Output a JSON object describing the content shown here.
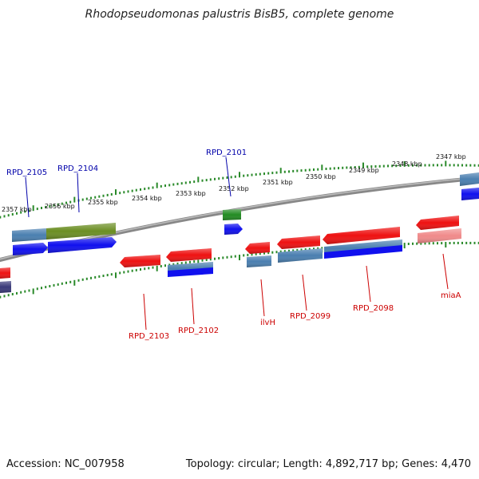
{
  "title": "Rhodopseudomonas palustris BisB5, complete genome",
  "footer": {
    "accession": "Accession: NC_007958",
    "topology": "Topology: circular; Length: 4,892,717 bp; Genes: 4,470"
  },
  "colors": {
    "backbone": "#888888",
    "tick": "#2a8a2a",
    "label_forward": "#0000aa",
    "label_reverse": "#cc0000",
    "gene_red": "#ee1111",
    "gene_blue": "#1010ee",
    "gene_steelblue": "#4a7fb0",
    "gene_olive": "#6b8e23",
    "gene_green": "#228b22",
    "gene_pink": "#f08a8a",
    "gene_navy": "#3a3a7a"
  },
  "ticks": [
    "2357 kbp",
    "2356 kbp",
    "2355 kbp",
    "2354 kbp",
    "2353 kbp",
    "2352 kbp",
    "2351 kbp",
    "2350 kbp",
    "2349 kbp",
    "2348 kbp",
    "2347 kbp"
  ],
  "labels": {
    "forward": [
      "RPD_2105",
      "RPD_2104",
      "RPD_2101"
    ],
    "reverse": [
      "RPD_2103",
      "RPD_2102",
      "ilvH",
      "RPD_2099",
      "RPD_2098",
      "miaA"
    ]
  }
}
